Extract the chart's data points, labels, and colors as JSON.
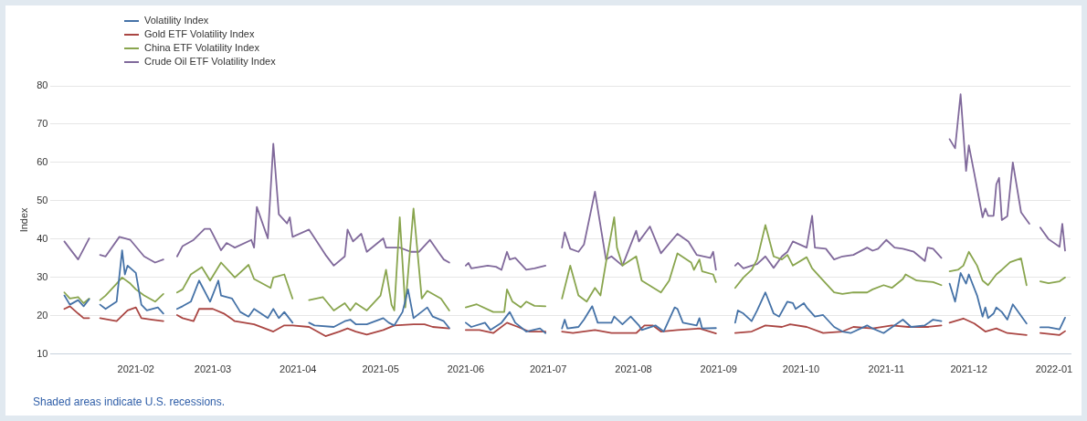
{
  "chart_data": {
    "type": "line",
    "ylabel": "Index",
    "legend": "top left",
    "grid": "y",
    "marker": "none",
    "line_style": "solid",
    "xlim": [
      "2021-01-01",
      "2022-01-07"
    ],
    "ylim": [
      10,
      80
    ],
    "yticks": [
      10,
      20,
      30,
      40,
      50,
      60,
      70,
      80
    ],
    "xticks": [
      {
        "value": "2021-02-01",
        "label": "2021-02"
      },
      {
        "value": "2021-03-01",
        "label": "2021-03"
      },
      {
        "value": "2021-04-01",
        "label": "2021-04"
      },
      {
        "value": "2021-05-01",
        "label": "2021-05"
      },
      {
        "value": "2021-06-01",
        "label": "2021-06"
      },
      {
        "value": "2021-07-01",
        "label": "2021-07"
      },
      {
        "value": "2021-08-01",
        "label": "2021-08"
      },
      {
        "value": "2021-09-01",
        "label": "2021-09"
      },
      {
        "value": "2021-10-01",
        "label": "2021-10"
      },
      {
        "value": "2021-11-01",
        "label": "2021-11"
      },
      {
        "value": "2021-12-01",
        "label": "2021-12"
      },
      {
        "value": "2022-01-01",
        "label": "2022-01"
      }
    ],
    "annotations": [
      "Shaded areas indicate U.S. recessions."
    ],
    "series": [
      {
        "name": "Volatility Index",
        "color": "#4572a7",
        "x": [
          "2021-01-06",
          "2021-01-08",
          "2021-01-11",
          "2021-01-13",
          "2021-01-15",
          "2021-01-18",
          "2021-01-19",
          "2021-01-21",
          "2021-01-25",
          "2021-01-27",
          "2021-01-28",
          "2021-01-29",
          "2021-02-01",
          "2021-02-03",
          "2021-02-05",
          "2021-02-09",
          "2021-02-11",
          "2021-02-15",
          "2021-02-16",
          "2021-02-18",
          "2021-02-21",
          "2021-02-24",
          "2021-02-28",
          "2021-03-03",
          "2021-03-04",
          "2021-03-08",
          "2021-03-11",
          "2021-03-14",
          "2021-03-16",
          "2021-03-21",
          "2021-03-23",
          "2021-03-25",
          "2021-03-27",
          "2021-03-30",
          "2021-04-02",
          "2021-04-05",
          "2021-04-07",
          "2021-04-14",
          "2021-04-18",
          "2021-04-20",
          "2021-04-22",
          "2021-04-26",
          "2021-05-02",
          "2021-05-04",
          "2021-05-06",
          "2021-05-09",
          "2021-05-11",
          "2021-05-13",
          "2021-05-18",
          "2021-05-20",
          "2021-05-24",
          "2021-05-26",
          "2021-05-31",
          "2021-06-01",
          "2021-06-03",
          "2021-06-08",
          "2021-06-10",
          "2021-06-14",
          "2021-06-17",
          "2021-06-19",
          "2021-06-23",
          "2021-06-28",
          "2021-06-30",
          "2021-07-05",
          "2021-07-06",
          "2021-07-07",
          "2021-07-08",
          "2021-07-12",
          "2021-07-14",
          "2021-07-17",
          "2021-07-19",
          "2021-07-24",
          "2021-07-25",
          "2021-07-28",
          "2021-07-31",
          "2021-08-03",
          "2021-08-04",
          "2021-08-09",
          "2021-08-12",
          "2021-08-16",
          "2021-08-17",
          "2021-08-19",
          "2021-08-24",
          "2021-08-25",
          "2021-08-26",
          "2021-08-31",
          "2021-09-06",
          "2021-09-07",
          "2021-09-08",
          "2021-09-10",
          "2021-09-13",
          "2021-09-15",
          "2021-09-18",
          "2021-09-21",
          "2021-09-23",
          "2021-09-26",
          "2021-09-28",
          "2021-09-29",
          "2021-10-02",
          "2021-10-03",
          "2021-10-06",
          "2021-10-09",
          "2021-10-13",
          "2021-10-16",
          "2021-10-19",
          "2021-10-25",
          "2021-10-27",
          "2021-10-31",
          "2021-11-04",
          "2021-11-07",
          "2021-11-10",
          "2021-11-15",
          "2021-11-18",
          "2021-11-21",
          "2021-11-23",
          "2021-11-24",
          "2021-11-26",
          "2021-11-28",
          "2021-11-30",
          "2021-12-01",
          "2021-12-04",
          "2021-12-06",
          "2021-12-07",
          "2021-12-08",
          "2021-12-10",
          "2021-12-11",
          "2021-12-13",
          "2021-12-15",
          "2021-12-17",
          "2021-12-22",
          "2021-12-24",
          "2021-12-27",
          "2021-12-30",
          "2022-01-03",
          "2022-01-05"
        ],
        "values": [
          25.3,
          22.9,
          24.1,
          22.5,
          24.3,
          null,
          22.9,
          21.8,
          23.7,
          37.1,
          30.8,
          33.1,
          31.2,
          22.9,
          21.4,
          22.2,
          20.6,
          null,
          21.8,
          22.5,
          23.7,
          29.2,
          23.7,
          29.2,
          25.3,
          24.5,
          21,
          19.8,
          21.8,
          19.4,
          21.8,
          19.4,
          21,
          18.2,
          null,
          18.2,
          17.5,
          17.1,
          18.6,
          19,
          17.8,
          17.8,
          19.4,
          18.2,
          17.5,
          21,
          26.9,
          19.4,
          22.2,
          19.8,
          18.6,
          16.8,
          null,
          18.2,
          17.1,
          18.2,
          16.3,
          18.2,
          21,
          18.2,
          15.9,
          16.7,
          15.5,
          null,
          16.7,
          19,
          16.7,
          17.1,
          19,
          22.5,
          18.2,
          18.2,
          19.8,
          17.8,
          19.8,
          17.5,
          16.3,
          17.5,
          15.9,
          22.2,
          21.8,
          18.2,
          17.5,
          19.4,
          16.7,
          16.8,
          null,
          18.2,
          21.4,
          20.6,
          18.6,
          21.4,
          26.1,
          20.6,
          19.8,
          23.7,
          23.3,
          21.8,
          23.3,
          22.2,
          19.8,
          20.2,
          17.1,
          15.9,
          15.5,
          17.5,
          16.7,
          15.5,
          17.5,
          19,
          17.1,
          17.5,
          19,
          18.6,
          null,
          28.4,
          23.7,
          31.2,
          28.4,
          30.8,
          25.3,
          19.8,
          22.2,
          19.4,
          20.6,
          22.2,
          21,
          19,
          23,
          18,
          null,
          17,
          17,
          16.5,
          19.5
        ]
      },
      {
        "name": "Gold ETF Volatility Index",
        "color": "#aa4643",
        "x": [
          "2021-01-06",
          "2021-01-08",
          "2021-01-11",
          "2021-01-13",
          "2021-01-15",
          "2021-01-18",
          "2021-01-19",
          "2021-01-25",
          "2021-01-29",
          "2021-02-01",
          "2021-02-03",
          "2021-02-07",
          "2021-02-11",
          "2021-02-15",
          "2021-02-16",
          "2021-02-18",
          "2021-02-22",
          "2021-02-24",
          "2021-03-01",
          "2021-03-05",
          "2021-03-09",
          "2021-03-16",
          "2021-03-23",
          "2021-03-27",
          "2021-03-30",
          "2021-04-05",
          "2021-04-11",
          "2021-04-16",
          "2021-04-19",
          "2021-04-22",
          "2021-04-26",
          "2021-05-02",
          "2021-05-06",
          "2021-05-13",
          "2021-05-17",
          "2021-05-20",
          "2021-05-26",
          "2021-05-31",
          "2021-06-01",
          "2021-06-06",
          "2021-06-11",
          "2021-06-16",
          "2021-06-20",
          "2021-06-24",
          "2021-06-30",
          "2021-07-05",
          "2021-07-06",
          "2021-07-10",
          "2021-07-18",
          "2021-07-24",
          "2021-08-02",
          "2021-08-05",
          "2021-08-08",
          "2021-08-11",
          "2021-08-17",
          "2021-08-25",
          "2021-08-31",
          "2021-09-06",
          "2021-09-07",
          "2021-09-13",
          "2021-09-18",
          "2021-09-24",
          "2021-09-27",
          "2021-10-03",
          "2021-10-09",
          "2021-10-16",
          "2021-10-20",
          "2021-10-27",
          "2021-11-03",
          "2021-11-09",
          "2021-11-16",
          "2021-11-21",
          "2021-11-23",
          "2021-11-24",
          "2021-11-29",
          "2021-12-03",
          "2021-12-07",
          "2021-12-11",
          "2021-12-15",
          "2021-12-22",
          "2021-12-24",
          "2021-12-27",
          "2022-01-03",
          "2022-01-05"
        ],
        "values": [
          21.8,
          22.5,
          20.6,
          19.4,
          19.4,
          null,
          19.4,
          18.6,
          21.4,
          22.2,
          19.4,
          19,
          18.6,
          null,
          20.2,
          19.4,
          18.6,
          21.8,
          21.8,
          20.6,
          18.6,
          17.8,
          15.9,
          17.5,
          17.5,
          17.1,
          14.7,
          15.9,
          16.7,
          15.9,
          15.1,
          16.3,
          17.5,
          17.8,
          17.8,
          17.1,
          16.7,
          null,
          16.3,
          16.3,
          15.5,
          18.2,
          17.1,
          15.9,
          15.9,
          null,
          15.9,
          15.5,
          16.3,
          15.5,
          15.5,
          17.5,
          17.5,
          15.9,
          16.3,
          16.7,
          15.4,
          null,
          15.5,
          15.9,
          17.5,
          17.1,
          17.8,
          17.1,
          15.5,
          15.9,
          17.1,
          16.7,
          17.5,
          17.1,
          17.1,
          17.5,
          null,
          18.2,
          19.3,
          18,
          15.9,
          16.7,
          15.5,
          15,
          null,
          15.5,
          15,
          16
        ]
      },
      {
        "name": "China ETF Volatility Index",
        "color": "#89a54e",
        "x": [
          "2021-01-06",
          "2021-01-08",
          "2021-01-11",
          "2021-01-13",
          "2021-01-15",
          "2021-01-18",
          "2021-01-19",
          "2021-01-21",
          "2021-01-25",
          "2021-01-27",
          "2021-01-30",
          "2021-02-01",
          "2021-02-04",
          "2021-02-08",
          "2021-02-11",
          "2021-02-15",
          "2021-02-16",
          "2021-02-18",
          "2021-02-21",
          "2021-02-25",
          "2021-02-28",
          "2021-03-04",
          "2021-03-09",
          "2021-03-14",
          "2021-03-16",
          "2021-03-22",
          "2021-03-23",
          "2021-03-27",
          "2021-03-30",
          "2021-04-02",
          "2021-04-05",
          "2021-04-10",
          "2021-04-14",
          "2021-04-18",
          "2021-04-20",
          "2021-04-22",
          "2021-04-26",
          "2021-05-01",
          "2021-05-03",
          "2021-05-05",
          "2021-05-06",
          "2021-05-08",
          "2021-05-10",
          "2021-05-13",
          "2021-05-16",
          "2021-05-18",
          "2021-05-23",
          "2021-05-26",
          "2021-05-31",
          "2021-06-01",
          "2021-06-05",
          "2021-06-11",
          "2021-06-15",
          "2021-06-16",
          "2021-06-18",
          "2021-06-21",
          "2021-06-23",
          "2021-06-26",
          "2021-06-30",
          "2021-07-05",
          "2021-07-06",
          "2021-07-09",
          "2021-07-12",
          "2021-07-15",
          "2021-07-18",
          "2021-07-20",
          "2021-07-22",
          "2021-07-25",
          "2021-07-26",
          "2021-07-28",
          "2021-08-02",
          "2021-08-04",
          "2021-08-11",
          "2021-08-14",
          "2021-08-17",
          "2021-08-22",
          "2021-08-23",
          "2021-08-25",
          "2021-08-26",
          "2021-08-30",
          "2021-08-31",
          "2021-09-06",
          "2021-09-07",
          "2021-09-10",
          "2021-09-13",
          "2021-09-15",
          "2021-09-18",
          "2021-09-21",
          "2021-09-24",
          "2021-09-26",
          "2021-09-28",
          "2021-10-03",
          "2021-10-05",
          "2021-10-09",
          "2021-10-13",
          "2021-10-16",
          "2021-10-20",
          "2021-10-25",
          "2021-10-27",
          "2021-10-31",
          "2021-11-03",
          "2021-11-07",
          "2021-11-08",
          "2021-11-12",
          "2021-11-18",
          "2021-11-21",
          "2021-11-23",
          "2021-11-24",
          "2021-11-27",
          "2021-11-29",
          "2021-12-01",
          "2021-12-04",
          "2021-12-06",
          "2021-12-08",
          "2021-12-11",
          "2021-12-13",
          "2021-12-16",
          "2021-12-20",
          "2021-12-22",
          "2021-12-24",
          "2021-12-27",
          "2021-12-30",
          "2022-01-03",
          "2022-01-05"
        ],
        "values": [
          26.1,
          24.5,
          24.9,
          23.3,
          24.5,
          null,
          24.1,
          25.3,
          28.4,
          30,
          28.4,
          26.9,
          25.3,
          23.7,
          25.7,
          null,
          26.1,
          26.9,
          30.8,
          32.7,
          29.2,
          33.9,
          30,
          33.3,
          29.6,
          27.3,
          30,
          30.8,
          24.5,
          null,
          24.1,
          24.9,
          21.4,
          23.3,
          21.4,
          23.3,
          21.4,
          25.3,
          32,
          22.9,
          21.4,
          45.7,
          22.2,
          48,
          24.5,
          26.5,
          24.5,
          21.4,
          null,
          22.2,
          23,
          21,
          21,
          26.9,
          23.7,
          22.2,
          23.7,
          22.6,
          22.5,
          null,
          24.5,
          33.1,
          25.3,
          23.7,
          27.3,
          25.3,
          33.9,
          45.7,
          37.8,
          33.1,
          35.5,
          29.2,
          26.1,
          29.2,
          36.3,
          33.9,
          32,
          34.7,
          31.6,
          30.8,
          28.8,
          null,
          27.3,
          30,
          32,
          34.7,
          43.7,
          35.5,
          34.7,
          35.9,
          33.1,
          35.3,
          32.4,
          29.2,
          26.1,
          25.7,
          26.1,
          26.1,
          26.9,
          28,
          27.3,
          29.6,
          30.8,
          29.2,
          28.8,
          28,
          null,
          31.6,
          32,
          33.1,
          36.7,
          33.1,
          29.2,
          28,
          30.8,
          32,
          34,
          35,
          28,
          null,
          29,
          28.5,
          29,
          30
        ]
      },
      {
        "name": "Crude Oil ETF Volatility Index",
        "color": "#80699b",
        "x": [
          "2021-01-06",
          "2021-01-08",
          "2021-01-11",
          "2021-01-15",
          "2021-01-18",
          "2021-01-19",
          "2021-01-21",
          "2021-01-26",
          "2021-01-30",
          "2021-02-04",
          "2021-02-08",
          "2021-02-11",
          "2021-02-15",
          "2021-02-16",
          "2021-02-18",
          "2021-02-22",
          "2021-02-26",
          "2021-02-28",
          "2021-03-04",
          "2021-03-06",
          "2021-03-09",
          "2021-03-15",
          "2021-03-16",
          "2021-03-17",
          "2021-03-21",
          "2021-03-23",
          "2021-03-25",
          "2021-03-28",
          "2021-03-29",
          "2021-03-30",
          "2021-04-05",
          "2021-04-11",
          "2021-04-14",
          "2021-04-18",
          "2021-04-19",
          "2021-04-21",
          "2021-04-24",
          "2021-04-26",
          "2021-05-02",
          "2021-05-03",
          "2021-05-08",
          "2021-05-12",
          "2021-05-15",
          "2021-05-19",
          "2021-05-22",
          "2021-05-24",
          "2021-05-26",
          "2021-05-31",
          "2021-06-01",
          "2021-06-02",
          "2021-06-03",
          "2021-06-09",
          "2021-06-12",
          "2021-06-14",
          "2021-06-16",
          "2021-06-17",
          "2021-06-19",
          "2021-06-23",
          "2021-06-26",
          "2021-06-30",
          "2021-07-05",
          "2021-07-06",
          "2021-07-07",
          "2021-07-09",
          "2021-07-12",
          "2021-07-14",
          "2021-07-18",
          "2021-07-22",
          "2021-07-24",
          "2021-07-28",
          "2021-08-02",
          "2021-08-03",
          "2021-08-07",
          "2021-08-11",
          "2021-08-17",
          "2021-08-21",
          "2021-08-24",
          "2021-08-29",
          "2021-08-30",
          "2021-08-31",
          "2021-09-06",
          "2021-09-07",
          "2021-09-08",
          "2021-09-10",
          "2021-09-13",
          "2021-09-15",
          "2021-09-18",
          "2021-09-21",
          "2021-09-24",
          "2021-09-26",
          "2021-09-28",
          "2021-10-03",
          "2021-10-05",
          "2021-10-06",
          "2021-10-10",
          "2021-10-13",
          "2021-10-16",
          "2021-10-20",
          "2021-10-25",
          "2021-10-27",
          "2021-10-29",
          "2021-11-01",
          "2021-11-04",
          "2021-11-07",
          "2021-11-11",
          "2021-11-15",
          "2021-11-16",
          "2021-11-18",
          "2021-11-21",
          "2021-11-23",
          "2021-11-24",
          "2021-11-26",
          "2021-11-28",
          "2021-11-30",
          "2021-12-01",
          "2021-12-03",
          "2021-12-06",
          "2021-12-07",
          "2021-12-08",
          "2021-12-10",
          "2021-12-11",
          "2021-12-12",
          "2021-12-13",
          "2021-12-15",
          "2021-12-17",
          "2021-12-20",
          "2021-12-23",
          "2021-12-24",
          "2021-12-27",
          "2021-12-30",
          "2022-01-03",
          "2022-01-04",
          "2022-01-05"
        ],
        "values": [
          39.4,
          37.5,
          34.7,
          40.2,
          null,
          35.9,
          35.5,
          40.6,
          39.8,
          35.5,
          33.9,
          34.7,
          null,
          35.5,
          38.2,
          39.8,
          42.7,
          42.7,
          37.1,
          39,
          37.8,
          39.8,
          37.8,
          48.4,
          40.2,
          64.9,
          46.5,
          44.1,
          45.7,
          40.6,
          42.5,
          35.9,
          33.1,
          35.5,
          42.5,
          39.4,
          41.4,
          36.7,
          40.2,
          37.8,
          37.8,
          36.7,
          36.7,
          39.8,
          36.7,
          34.7,
          33.9,
          null,
          33.1,
          33.8,
          32.4,
          33.1,
          32.8,
          32,
          36.7,
          34.7,
          35.1,
          32,
          32.4,
          33.1,
          null,
          37.8,
          41.8,
          37.5,
          36.7,
          38.6,
          52.4,
          34.7,
          35.5,
          33.1,
          42.2,
          39.4,
          43.3,
          36.3,
          41.4,
          39.4,
          35.9,
          35.1,
          36.7,
          32,
          null,
          33.1,
          33.8,
          32.4,
          33.1,
          33.5,
          35.5,
          32.5,
          35.5,
          36.7,
          39.4,
          37.8,
          46.1,
          37.8,
          37.5,
          34.7,
          35.5,
          35.9,
          37.8,
          37,
          37.5,
          39.8,
          37.8,
          37.5,
          36.7,
          34.3,
          37.8,
          37.5,
          35.1,
          null,
          66.1,
          63.7,
          77.8,
          57.8,
          64.5,
          57.1,
          45.7,
          48,
          46.1,
          46.1,
          54.3,
          56,
          45,
          46,
          60,
          47,
          44,
          null,
          43,
          40,
          38,
          44,
          37
        ]
      }
    ]
  }
}
